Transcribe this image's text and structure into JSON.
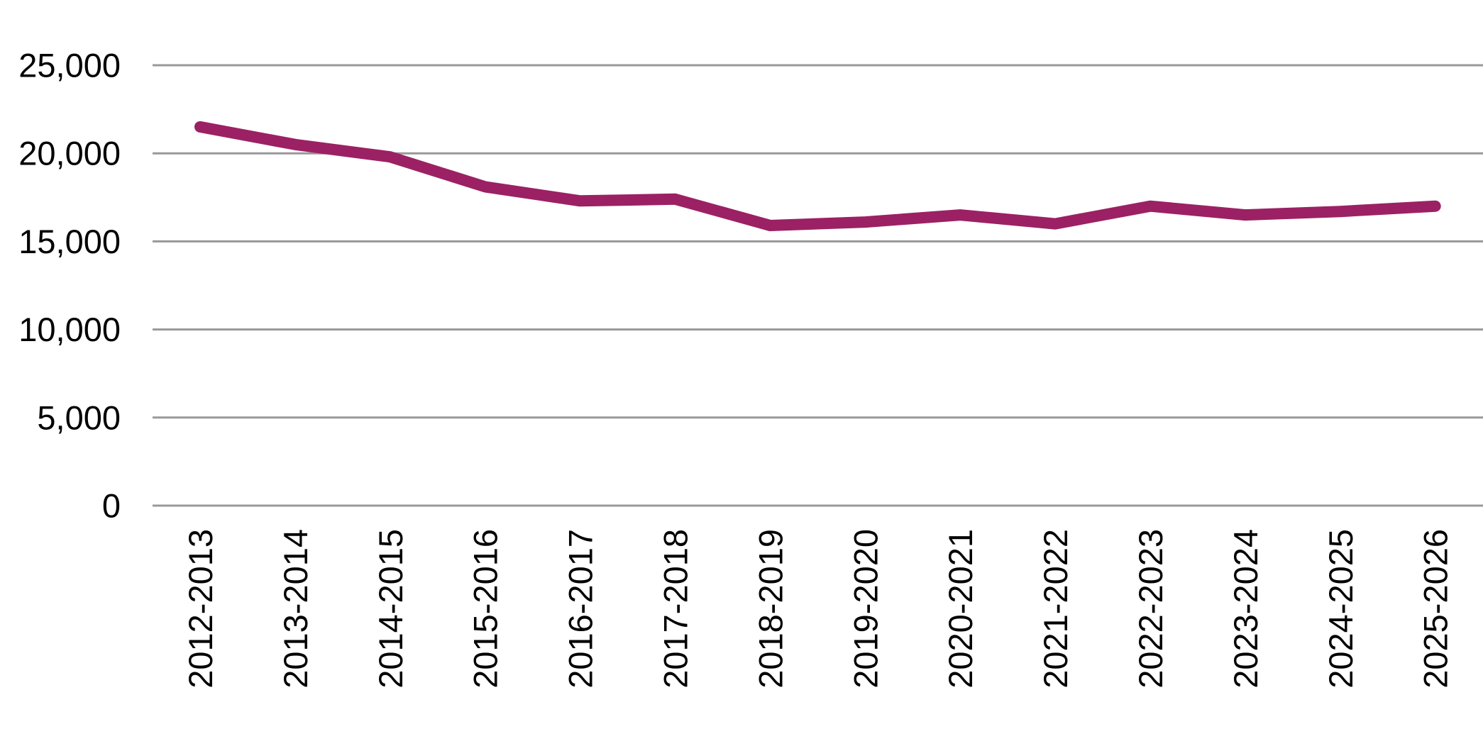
{
  "chart_data": {
    "type": "line",
    "title": "",
    "xlabel": "",
    "ylabel": "",
    "categories": [
      "2012-2013",
      "2013-2014",
      "2014-2015",
      "2015-2016",
      "2016-2017",
      "2017-2018",
      "2018-2019",
      "2019-2020",
      "2020-2021",
      "2021-2022",
      "2022-2023",
      "2023-2024",
      "2024-2025",
      "2025-2026"
    ],
    "values": [
      21500,
      20500,
      19800,
      18100,
      17300,
      17400,
      15900,
      16100,
      16500,
      16000,
      17000,
      16500,
      16700,
      17000
    ],
    "ylim": [
      0,
      25000
    ],
    "yticks": [
      0,
      5000,
      10000,
      15000,
      20000,
      25000
    ],
    "ytick_labels": [
      "0",
      "5,000",
      "10,000",
      "15,000",
      "20,000",
      "25,000"
    ],
    "grid": "horizontal-only",
    "legend": "none",
    "colors": {
      "line": "#9B2164",
      "gridline": "#999999",
      "tick_text": "#000000",
      "background": "#FFFFFF"
    }
  }
}
